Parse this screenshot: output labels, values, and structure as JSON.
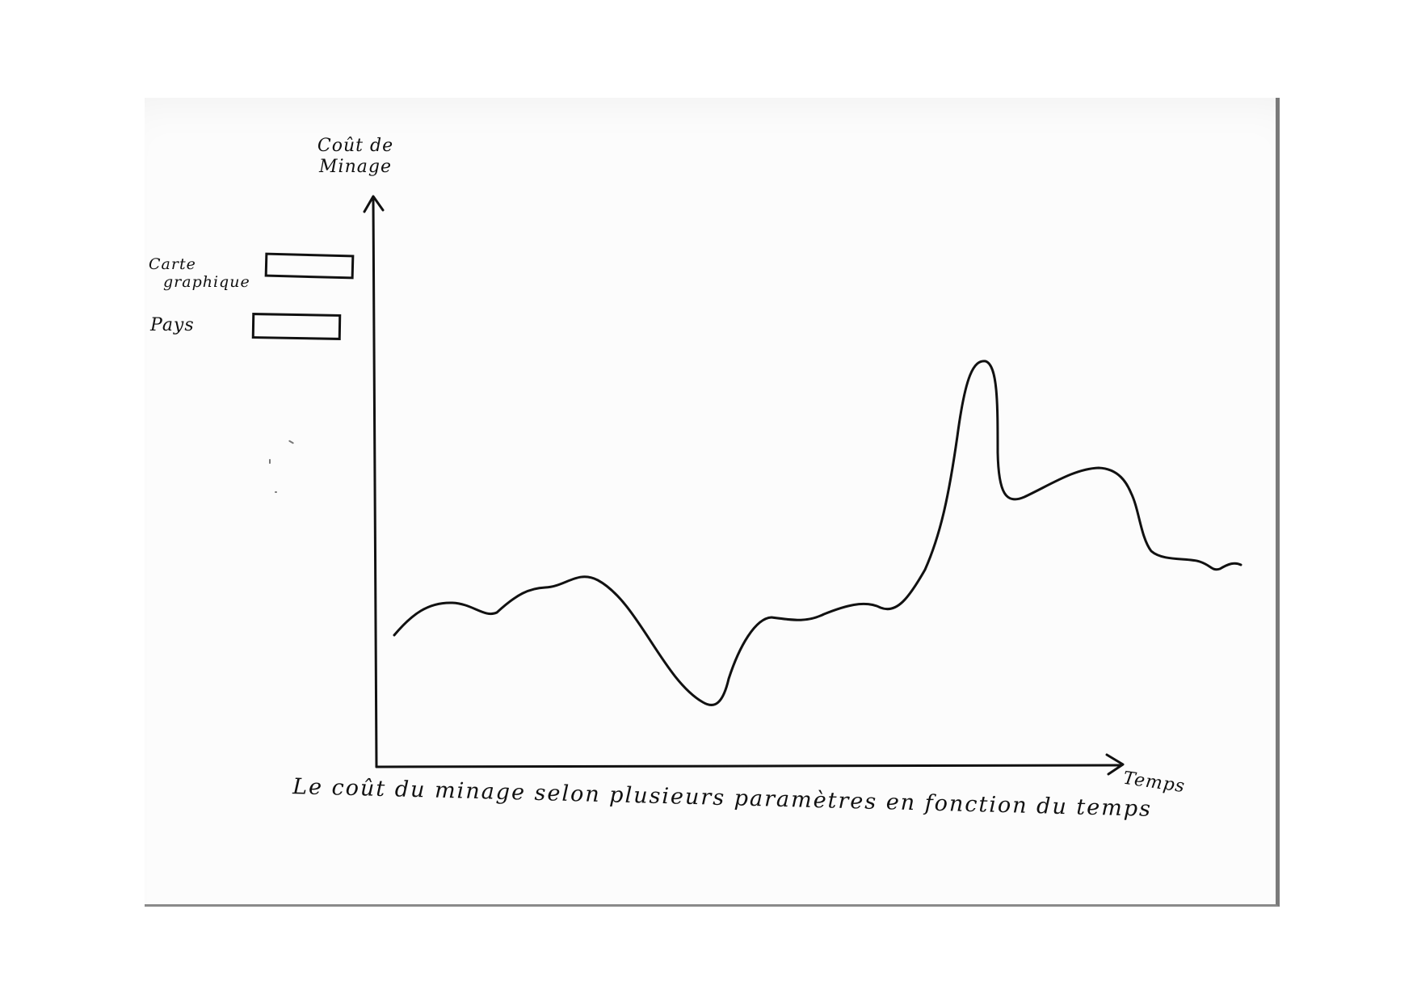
{
  "sketch": {
    "y_axis_label_line1": "Coût de",
    "y_axis_label_line2": "Minage",
    "filters": {
      "gpu_label_line1": "Carte",
      "gpu_label_line2": "graphique",
      "country_label": "Pays"
    },
    "x_axis_label": "Temps",
    "caption": "Le coût du minage selon plusieurs paramètres en fonction du temps"
  },
  "colors": {
    "ink": "#111111",
    "paper": "#fcfcfc"
  }
}
